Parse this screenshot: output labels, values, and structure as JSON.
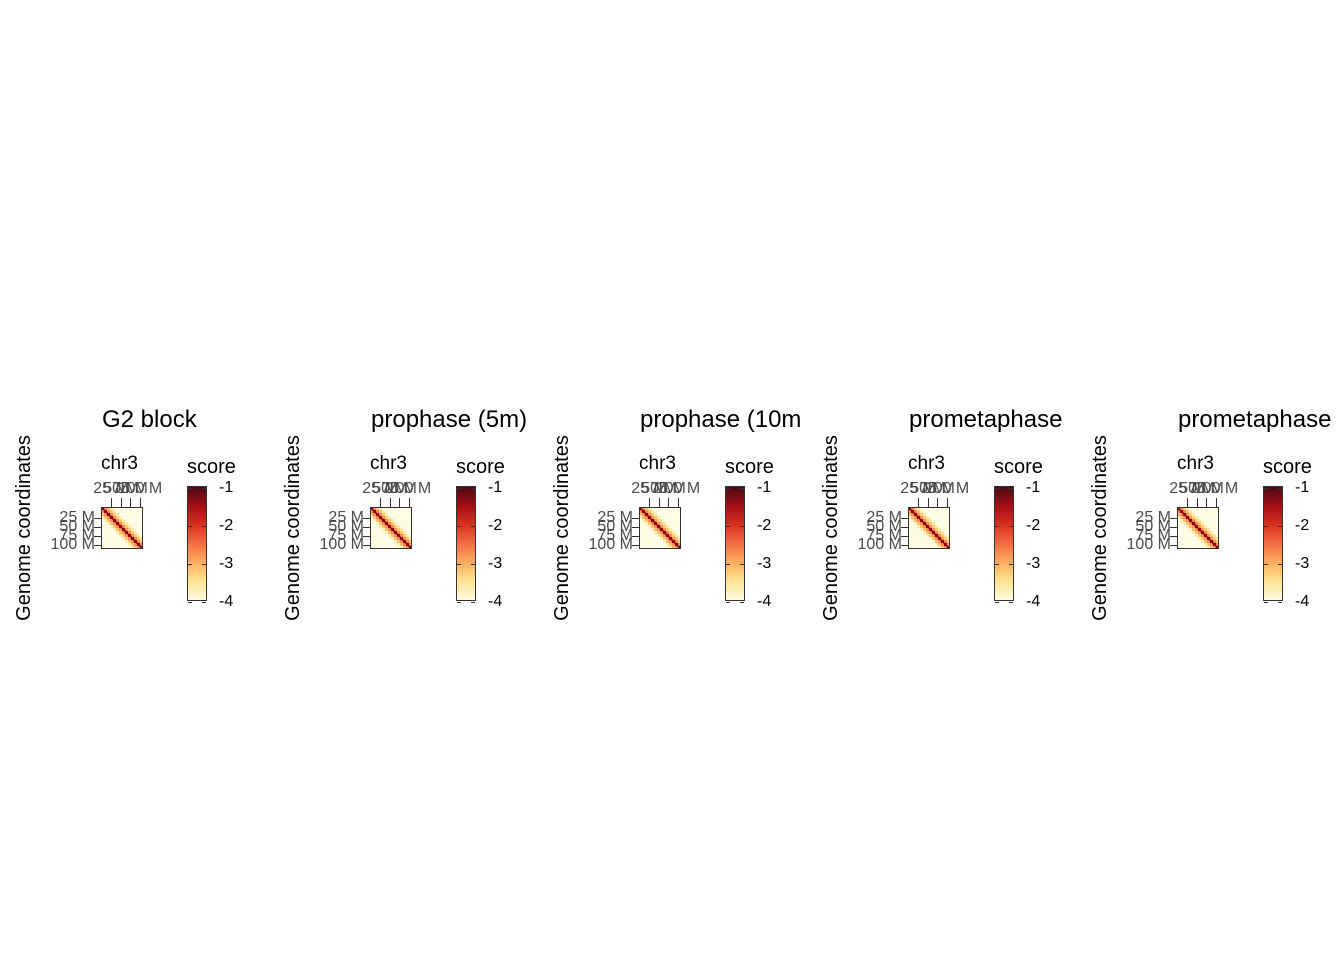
{
  "colors": {
    "scale": [
      "#fffbe0",
      "#fee391",
      "#fdae61",
      "#f46d43",
      "#d7301f",
      "#a50f15",
      "#4a0a14"
    ],
    "background": "#fffde6"
  },
  "chart_data": [
    {
      "type": "heatmap",
      "title": "G2 block",
      "ylabel": "Genome coordinates",
      "chromosome": "chr3",
      "x_ticks": [
        "25 M",
        "50 M",
        "75 M",
        "100 M"
      ],
      "y_ticks": [
        "25 M",
        "50 M",
        "75 M",
        "100 M"
      ],
      "legend_title": "score",
      "legend_ticks": [
        "-1",
        "-2",
        "-3",
        "-4"
      ],
      "color_range": [
        -4,
        -1
      ]
    },
    {
      "type": "heatmap",
      "title": "prophase (5m)",
      "ylabel": "Genome coordinates",
      "chromosome": "chr3",
      "x_ticks": [
        "25 M",
        "50 M",
        "75 M",
        "100 M"
      ],
      "y_ticks": [
        "25 M",
        "50 M",
        "75 M",
        "100 M"
      ],
      "legend_title": "score",
      "legend_ticks": [
        "-1",
        "-2",
        "-3",
        "-4"
      ],
      "color_range": [
        -4,
        -1
      ]
    },
    {
      "type": "heatmap",
      "title": "prophase (10m",
      "ylabel": "Genome coordinates",
      "chromosome": "chr3",
      "x_ticks": [
        "25 M",
        "50 M",
        "75 M",
        "100 M"
      ],
      "y_ticks": [
        "25 M",
        "50 M",
        "75 M",
        "100 M"
      ],
      "legend_title": "score",
      "legend_ticks": [
        "-1",
        "-2",
        "-3",
        "-4"
      ],
      "color_range": [
        -4,
        -1
      ]
    },
    {
      "type": "heatmap",
      "title": "prometaphase",
      "ylabel": "Genome coordinates",
      "chromosome": "chr3",
      "x_ticks": [
        "25 M",
        "50 M",
        "75 M",
        "100 M"
      ],
      "y_ticks": [
        "25 M",
        "50 M",
        "75 M",
        "100 M"
      ],
      "legend_title": "score",
      "legend_ticks": [
        "-1",
        "-2",
        "-3",
        "-4"
      ],
      "color_range": [
        -4,
        -1
      ]
    },
    {
      "type": "heatmap",
      "title": "prometaphase",
      "ylabel": "Genome coordinates",
      "chromosome": "chr3",
      "x_ticks": [
        "25 M",
        "50 M",
        "75 M",
        "100 M"
      ],
      "y_ticks": [
        "25 M",
        "50 M",
        "75 M",
        "100 M"
      ],
      "legend_title": "score",
      "legend_ticks": [
        "-1",
        "-2",
        "-3",
        "-4"
      ],
      "color_range": [
        -4,
        -1
      ]
    }
  ]
}
